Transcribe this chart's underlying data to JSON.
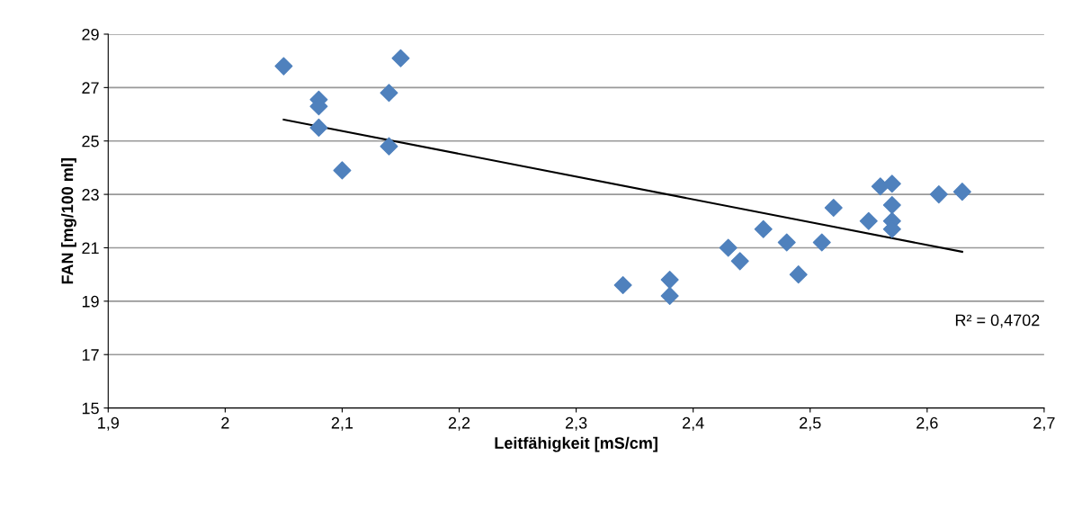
{
  "chart_data": {
    "type": "scatter",
    "xlabel": "Leitfähigkeit [mS/cm]",
    "ylabel": "FAN [mg/100 ml]",
    "x": [
      2.05,
      2.08,
      2.08,
      2.08,
      2.1,
      2.14,
      2.14,
      2.15,
      2.34,
      2.38,
      2.38,
      2.43,
      2.44,
      2.46,
      2.48,
      2.49,
      2.51,
      2.52,
      2.55,
      2.56,
      2.57,
      2.57,
      2.57,
      2.57,
      2.61,
      2.63
    ],
    "series": [
      {
        "color": "#4f81bd",
        "marker": "diamond",
        "values": [
          27.8,
          26.55,
          26.3,
          25.5,
          23.9,
          26.8,
          24.8,
          28.1,
          19.6,
          19.8,
          19.2,
          21.0,
          20.5,
          21.7,
          21.2,
          20.0,
          21.2,
          22.5,
          22.0,
          23.3,
          23.4,
          22.6,
          22.0,
          21.7,
          23.0,
          23.1
        ]
      },
      {
        "type": "line",
        "color": "#000000",
        "marker": "none",
        "line_style": "solid",
        "x": [
          2.05,
          2.63
        ],
        "values": [
          25.8,
          20.85
        ]
      }
    ],
    "annotations": [
      "R² = 0,4702"
    ],
    "xlim": [
      1.9,
      2.7
    ],
    "xticks": [
      {
        "value": 1.9,
        "label": "1,9"
      },
      2,
      {
        "value": 2.1,
        "label": "2,1"
      },
      {
        "value": 2.2,
        "label": "2,2"
      },
      {
        "value": 2.3,
        "label": "2,3"
      },
      {
        "value": 2.4,
        "label": "2,4"
      },
      {
        "value": 2.5,
        "label": "2,5"
      },
      {
        "value": 2.6,
        "label": "2,6"
      },
      {
        "value": 2.7,
        "label": "2,7"
      }
    ],
    "ylim": [
      15,
      29
    ],
    "yticks": [
      15,
      17,
      19,
      21,
      23,
      25,
      27,
      29
    ],
    "grid": "y",
    "legend": false
  }
}
